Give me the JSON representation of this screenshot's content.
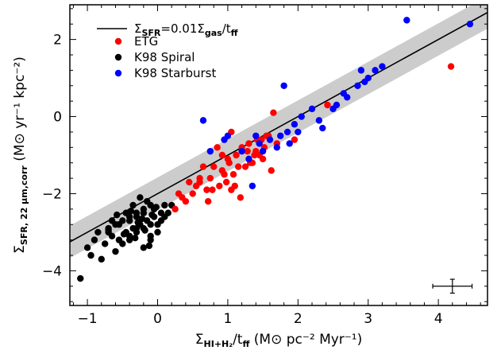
{
  "chart_data": {
    "type": "scatter",
    "title": "",
    "xlabel": {
      "main": "Σ",
      "sub": "HI+H₂",
      "rest": "/t",
      "sub2": "ff",
      "units": " (M⊙ pc⁻²  Myr⁻¹)"
    },
    "ylabel": {
      "main": "Σ",
      "sub": "SFR, 22 μm,corr",
      "units": " (M⊙ yr⁻¹ kpc⁻²)"
    },
    "xlim": [
      -1.25,
      4.7
    ],
    "ylim": [
      -4.9,
      2.9
    ],
    "xticks": [
      -1,
      0,
      1,
      2,
      3,
      4
    ],
    "yticks": [
      -4,
      -2,
      0,
      2
    ],
    "grid": false,
    "legend": {
      "placement": "top-left",
      "fit_label": {
        "main": "Σ",
        "sub": "SFR",
        "mid": "=0.01Σ",
        "sub2": "gas",
        "end": "/t",
        "sub3": "ff"
      },
      "entries": [
        "ETG",
        "K98 Spiral",
        "K98 Starburst"
      ]
    },
    "fit_line": {
      "slope": 1.0,
      "intercept": -2.0,
      "band_halfwidth": 0.42,
      "color": "#000000",
      "band_color": "#cccccc"
    },
    "error_bar": {
      "x": 4.2,
      "y": -4.4,
      "xerr": 0.28,
      "yerr": 0.18
    },
    "series": [
      {
        "name": "ETG",
        "color": "#ff0000",
        "x": [
          4.18,
          2.42,
          1.65,
          1.55,
          1.52,
          1.48,
          1.45,
          1.4,
          1.35,
          1.3,
          1.25,
          1.2,
          1.12,
          1.08,
          1.05,
          1.0,
          0.98,
          0.92,
          0.88,
          0.85,
          0.8,
          0.75,
          0.7,
          0.65,
          0.6,
          0.55,
          0.5,
          0.45,
          0.4,
          0.35,
          0.3,
          0.25,
          0.92,
          1.02,
          1.15,
          1.28,
          1.38,
          1.42,
          1.5,
          1.58,
          1.62,
          1.95,
          1.7,
          1.1,
          0.95,
          1.05,
          1.18,
          1.32,
          0.6,
          0.72,
          0.78
        ],
        "y": [
          1.3,
          0.3,
          0.1,
          -0.5,
          -0.8,
          -0.6,
          -1.0,
          -0.9,
          -1.2,
          -0.7,
          -1.3,
          -0.8,
          -1.0,
          -1.5,
          -0.4,
          -1.1,
          -1.7,
          -1.4,
          -1.8,
          -0.8,
          -1.3,
          -1.6,
          -1.9,
          -1.3,
          -1.6,
          -1.8,
          -2.0,
          -1.7,
          -2.2,
          -2.1,
          -2.0,
          -2.4,
          -1.0,
          -1.2,
          -1.3,
          -0.9,
          -1.0,
          -0.6,
          -1.1,
          -0.5,
          -1.4,
          -0.6,
          -0.7,
          -1.8,
          -1.5,
          -1.9,
          -2.1,
          -1.2,
          -1.7,
          -2.2,
          -1.9
        ]
      },
      {
        "name": "K98 Spiral",
        "color": "#000000",
        "x": [
          -1.1,
          -1.0,
          -0.95,
          -0.9,
          -0.85,
          -0.8,
          -0.75,
          -0.7,
          -0.65,
          -0.6,
          -0.55,
          -0.5,
          -0.45,
          -0.4,
          -0.35,
          -0.3,
          -0.25,
          -0.2,
          -0.15,
          -0.1,
          -0.05,
          0.0,
          0.05,
          0.1,
          0.15,
          0.2,
          -0.6,
          -0.5,
          -0.4,
          -0.3,
          -0.2,
          -0.1,
          0.0,
          -0.4,
          -0.3,
          -0.2,
          -0.1,
          -0.25,
          -0.35,
          -0.45,
          -0.15,
          -0.05,
          -0.55,
          -0.65,
          -0.7,
          -0.3,
          -0.2,
          -0.1,
          0.05,
          -0.4,
          -0.28,
          -0.18,
          -0.08,
          -0.38,
          -0.48,
          -0.22,
          -0.12,
          -0.32,
          0.1,
          -0.02,
          -0.58,
          -0.7
        ],
        "y": [
          -4.2,
          -3.4,
          -3.6,
          -3.2,
          -3.0,
          -3.7,
          -3.3,
          -2.9,
          -3.1,
          -2.8,
          -3.2,
          -2.7,
          -3.0,
          -2.6,
          -2.9,
          -2.5,
          -2.8,
          -2.4,
          -2.7,
          -2.3,
          -2.6,
          -2.8,
          -2.5,
          -2.3,
          -2.5,
          -2.3,
          -3.5,
          -3.3,
          -3.1,
          -3.0,
          -2.9,
          -3.2,
          -3.0,
          -2.7,
          -2.6,
          -2.5,
          -2.8,
          -2.1,
          -2.3,
          -2.5,
          -2.2,
          -2.4,
          -2.8,
          -2.7,
          -3.0,
          -2.9,
          -3.4,
          -3.1,
          -2.7,
          -3.2,
          -2.75,
          -2.95,
          -2.55,
          -2.45,
          -3.05,
          -2.65,
          -3.35,
          -3.15,
          -2.6,
          -2.35,
          -2.55,
          -2.95
        ]
      },
      {
        "name": "K98 Starburst",
        "color": "#0000ff",
        "x": [
          3.55,
          4.45,
          3.2,
          3.1,
          3.0,
          2.95,
          2.9,
          2.85,
          2.65,
          2.7,
          2.55,
          2.5,
          2.3,
          2.2,
          2.05,
          1.95,
          1.85,
          1.8,
          1.75,
          1.6,
          1.5,
          1.45,
          1.4,
          1.3,
          1.2,
          1.0,
          0.95,
          0.75,
          0.65,
          2.0,
          1.88,
          1.7,
          1.35,
          2.35
        ],
        "y": [
          2.5,
          2.4,
          1.3,
          1.2,
          1.0,
          0.9,
          1.2,
          0.8,
          0.6,
          0.5,
          0.3,
          0.2,
          -0.1,
          0.2,
          0.0,
          -0.2,
          -0.4,
          0.8,
          -0.5,
          -0.6,
          -0.9,
          -0.7,
          -0.5,
          -1.1,
          -0.9,
          -0.5,
          -0.6,
          -0.9,
          -0.1,
          -0.4,
          -0.7,
          -0.8,
          -1.8,
          -0.3
        ]
      }
    ]
  }
}
